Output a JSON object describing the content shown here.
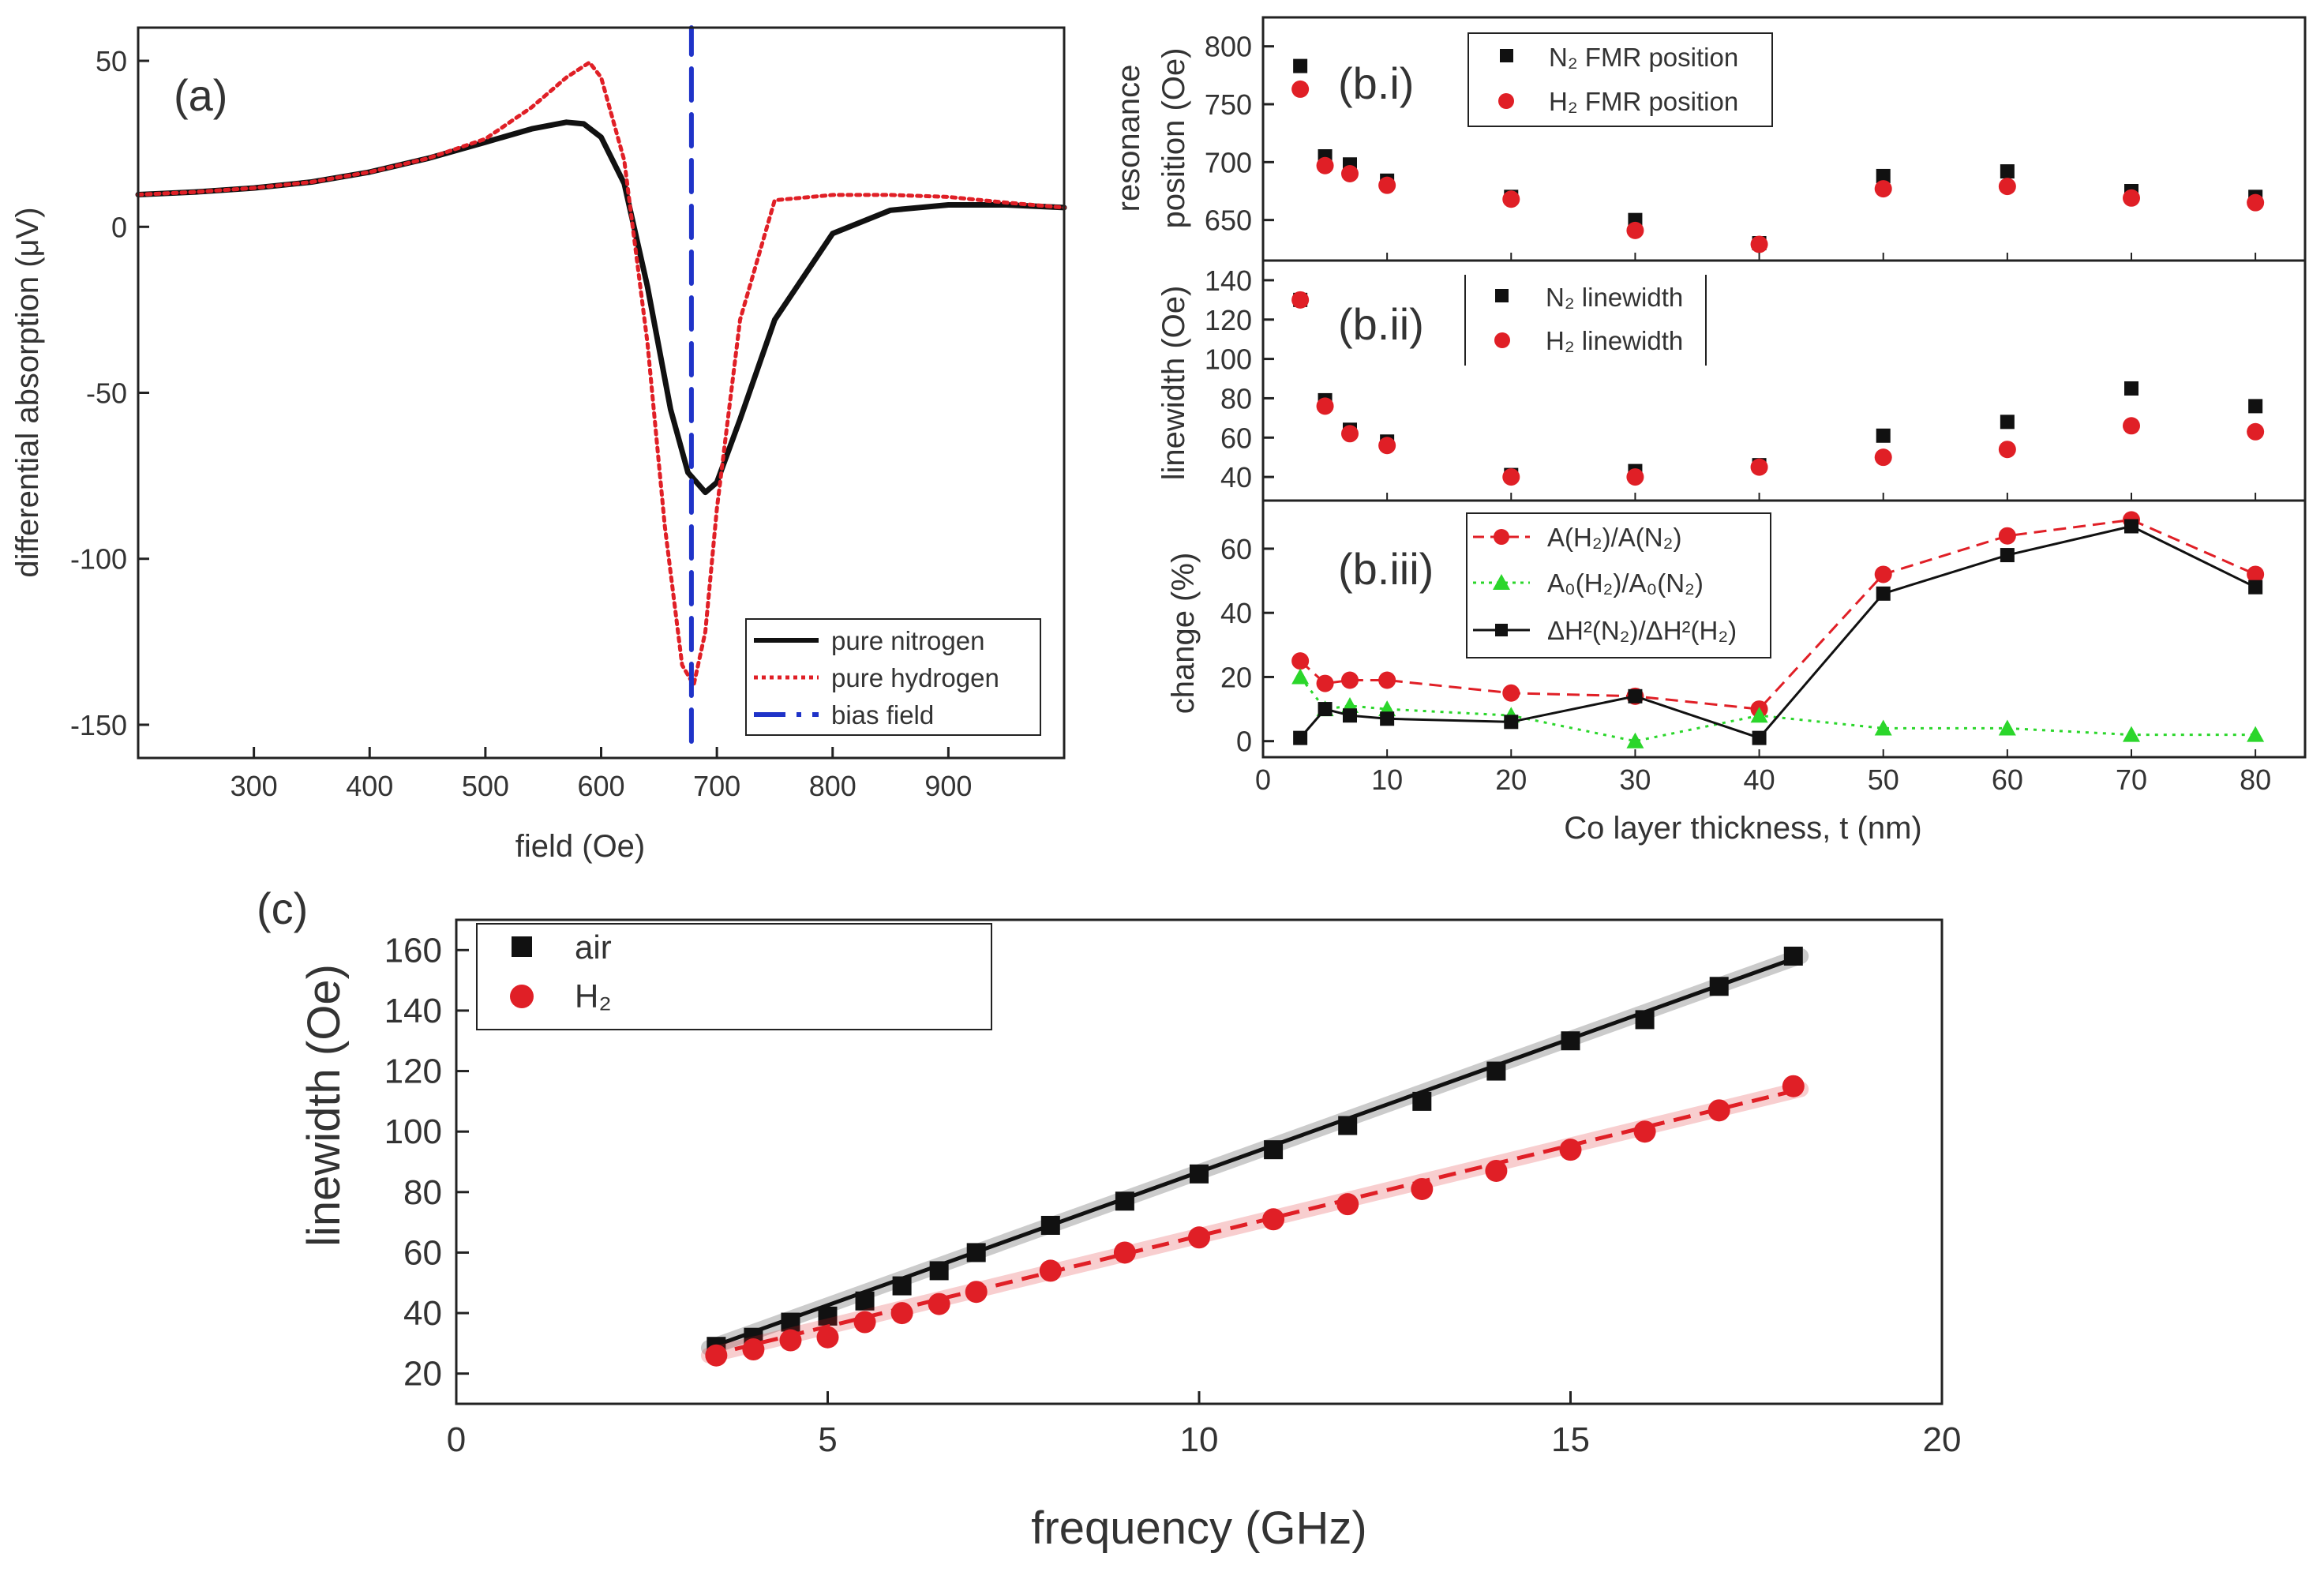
{
  "figure": {
    "panel_a_label": "(a)",
    "panel_bi_label": "(b.i)",
    "panel_bii_label": "(b.ii)",
    "panel_biii_label": "(b.iii)",
    "panel_c_label": "(c)"
  },
  "colors": {
    "black": "#111111",
    "red": "#e01f26",
    "blue": "#1f33c8",
    "green": "#2bd62b"
  },
  "chart_data": [
    {
      "id": "a",
      "type": "line",
      "title": "(a)",
      "xlabel": "field (Oe)",
      "ylabel": "differential absorption (μV)",
      "xlim": [
        200,
        1000
      ],
      "ylim": [
        -160,
        60
      ],
      "xticks": [
        300,
        400,
        500,
        600,
        700,
        800,
        900
      ],
      "yticks": [
        50,
        0,
        -50,
        -100,
        -150
      ],
      "legend_position": "bottom-right",
      "series": [
        {
          "name": "pure nitrogen",
          "style": "solid",
          "color": "#111111",
          "x": [
            200,
            250,
            300,
            350,
            400,
            450,
            500,
            540,
            570,
            585,
            600,
            620,
            640,
            660,
            675,
            690,
            700,
            720,
            750,
            800,
            850,
            900,
            950,
            1000
          ],
          "y": [
            9.7,
            10.5,
            11.7,
            13.5,
            16.5,
            20.6,
            25.5,
            29.5,
            31.5,
            31,
            27,
            13,
            -18,
            -55,
            -74,
            -80,
            -77,
            -58,
            -28,
            -2,
            5,
            6.6,
            6.6,
            5.8
          ]
        },
        {
          "name": "pure hydrogen",
          "style": "dotted",
          "color": "#e01f26",
          "x": [
            200,
            250,
            300,
            350,
            400,
            450,
            500,
            540,
            570,
            590,
            600,
            620,
            640,
            655,
            670,
            680,
            690,
            700,
            720,
            750,
            800,
            850,
            900,
            950,
            1000
          ],
          "y": [
            9.7,
            10.5,
            11.7,
            13.5,
            16.5,
            20.6,
            26.5,
            36,
            45,
            49.5,
            45,
            20,
            -35,
            -90,
            -132,
            -138,
            -122,
            -85,
            -28,
            8,
            9.6,
            9.6,
            9,
            7.3,
            5.8
          ]
        },
        {
          "name": "bias field",
          "style": "dashed",
          "color": "#1f33c8",
          "x": [
            678,
            678
          ],
          "y": [
            -155,
            60
          ]
        }
      ]
    },
    {
      "id": "b.i",
      "type": "scatter",
      "title": "(b.i)",
      "ylabel": "resonance position (Oe)",
      "xlim": [
        0,
        84
      ],
      "ylim": [
        615,
        825
      ],
      "yticks": [
        650,
        700,
        750,
        800
      ],
      "legend_position": "top",
      "x": [
        3,
        5,
        7,
        10,
        20,
        30,
        40,
        50,
        60,
        70,
        80
      ],
      "series": [
        {
          "name": "N₂ FMR position",
          "marker": "square",
          "color": "#111111",
          "values": [
            783,
            705,
            698,
            684,
            670,
            650,
            630,
            688,
            692,
            675,
            670
          ]
        },
        {
          "name": "H₂ FMR position",
          "marker": "circle",
          "color": "#e01f26",
          "values": [
            763,
            697,
            690,
            680,
            668,
            641,
            629,
            677,
            679,
            669,
            665
          ]
        }
      ]
    },
    {
      "id": "b.ii",
      "type": "scatter",
      "title": "(b.ii)",
      "ylabel": "linewidth (Oe)",
      "xlim": [
        0,
        84
      ],
      "ylim": [
        28,
        150
      ],
      "yticks": [
        40,
        60,
        80,
        100,
        120,
        140
      ],
      "legend_position": "top",
      "x": [
        3,
        5,
        7,
        10,
        20,
        30,
        40,
        50,
        60,
        70,
        80
      ],
      "series": [
        {
          "name": "N₂ linewidth",
          "marker": "square",
          "color": "#111111",
          "values": [
            130,
            79,
            64,
            58,
            41,
            43,
            46,
            61,
            68,
            85,
            76
          ]
        },
        {
          "name": "H₂ linewidth",
          "marker": "circle",
          "color": "#e01f26",
          "values": [
            130,
            76,
            62,
            56,
            40,
            40,
            45,
            50,
            54,
            66,
            63
          ]
        }
      ]
    },
    {
      "id": "b.iii",
      "type": "line",
      "title": "(b.iii)",
      "xlabel": "Co layer thickness, t (nm)",
      "ylabel": "change (%)",
      "xlim": [
        0,
        84
      ],
      "ylim": [
        -5,
        75
      ],
      "xticks": [
        0,
        10,
        20,
        30,
        40,
        50,
        60,
        70,
        80
      ],
      "yticks": [
        0,
        20,
        40,
        60
      ],
      "legend_position": "top-left",
      "x": [
        3,
        5,
        7,
        10,
        20,
        30,
        40,
        50,
        60,
        70,
        80
      ],
      "series": [
        {
          "name": "A(H₂)/A(N₂)",
          "marker": "circle",
          "style": "dashed",
          "color": "#e01f26",
          "values": [
            25,
            18,
            19,
            19,
            15,
            14,
            10,
            52,
            64,
            69,
            52
          ]
        },
        {
          "name": "A₀(H₂)/A₀(N₂)",
          "marker": "triangle",
          "style": "dotted",
          "color": "#2bd62b",
          "values": [
            20,
            10,
            11,
            10,
            8,
            0,
            8,
            4,
            4,
            2,
            2
          ]
        },
        {
          "name": "ΔH²(N₂)/ΔH²(H₂)",
          "marker": "square",
          "style": "solid",
          "color": "#111111",
          "values": [
            1,
            10,
            8,
            7,
            6,
            14,
            1,
            46,
            58,
            67,
            48
          ]
        }
      ]
    },
    {
      "id": "c",
      "type": "scatter",
      "title": "(c)",
      "xlabel": "frequency (GHz)",
      "ylabel": "linewidth (Oe)",
      "xlim": [
        0,
        20
      ],
      "ylim": [
        10,
        170
      ],
      "xticks": [
        0,
        5,
        10,
        15,
        20
      ],
      "yticks": [
        20,
        40,
        60,
        80,
        100,
        120,
        140,
        160
      ],
      "legend_position": "top-left",
      "x": [
        3.5,
        4,
        4.5,
        5,
        5.5,
        6,
        6.5,
        7,
        8,
        9,
        10,
        11,
        12,
        13,
        14,
        15,
        16,
        17,
        18
      ],
      "series": [
        {
          "name": "air",
          "marker": "square",
          "color": "#111111",
          "values": [
            29,
            32,
            37,
            39,
            44,
            49,
            54,
            60,
            69,
            77,
            86,
            94,
            102,
            110,
            120,
            130,
            137,
            148,
            158
          ],
          "fit": [
            [
              3.4,
              28.5
            ],
            [
              18.1,
              158
            ]
          ]
        },
        {
          "name": "H₂",
          "marker": "circle",
          "color": "#e01f26",
          "values": [
            26,
            28,
            31,
            32,
            37,
            40,
            43,
            47,
            54,
            60,
            65,
            71,
            76,
            81,
            87,
            94,
            100,
            107,
            115
          ],
          "fit": [
            [
              3.4,
              26
            ],
            [
              18.1,
              114
            ]
          ]
        }
      ]
    }
  ]
}
